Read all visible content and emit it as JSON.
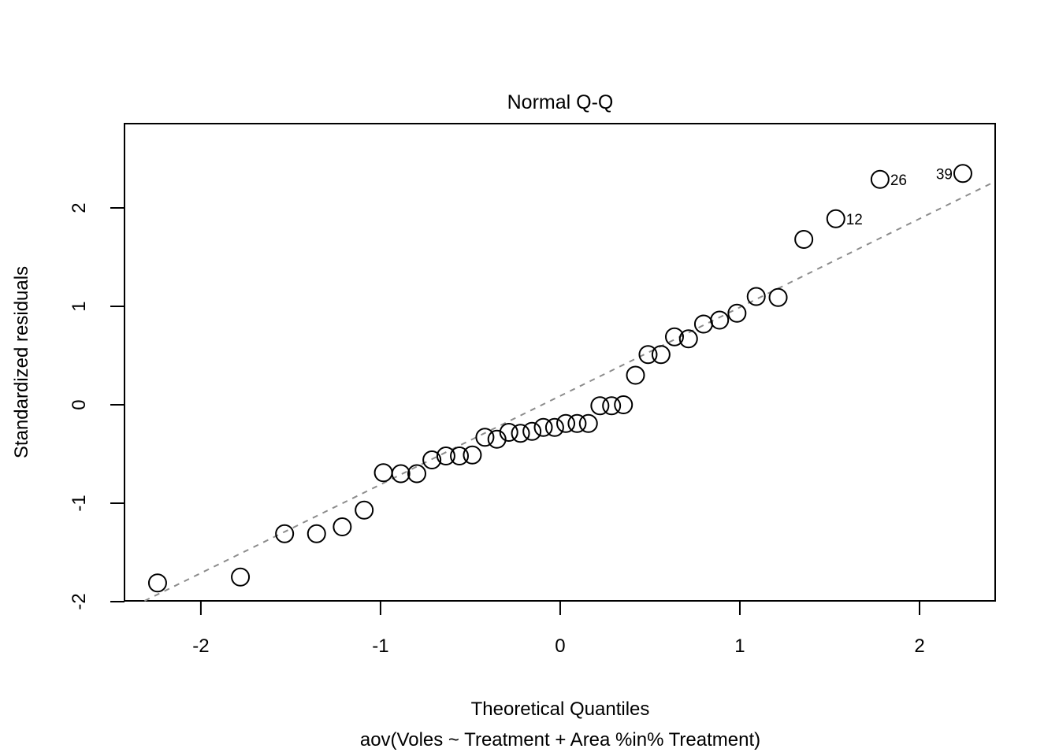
{
  "chart_data": {
    "type": "scatter",
    "title": "Normal Q-Q",
    "xlabel": "Theoretical Quantiles",
    "subtitle": "aov(Voles ~ Treatment + Area %in% Treatment)",
    "ylabel": "Standardized residuals",
    "xlim": [
      -2.425,
      2.421
    ],
    "ylim": [
      -1.992,
      2.856
    ],
    "x_ticks": [
      -2,
      -1,
      0,
      1,
      2
    ],
    "y_ticks": [
      -2,
      -1,
      0,
      1,
      2
    ],
    "grid": false,
    "legend": "none",
    "point_style": "open-circle",
    "points": [
      [
        -2.241,
        -1.81
      ],
      [
        -1.78,
        -1.75
      ],
      [
        -1.534,
        -1.31
      ],
      [
        -1.356,
        -1.31
      ],
      [
        -1.213,
        -1.24
      ],
      [
        -1.091,
        -1.07
      ],
      [
        -0.984,
        -0.69
      ],
      [
        -0.887,
        -0.7
      ],
      [
        -0.798,
        -0.7
      ],
      [
        -0.714,
        -0.56
      ],
      [
        -0.636,
        -0.52
      ],
      [
        -0.561,
        -0.52
      ],
      [
        -0.489,
        -0.51
      ],
      [
        -0.419,
        -0.33
      ],
      [
        -0.352,
        -0.35
      ],
      [
        -0.286,
        -0.28
      ],
      [
        -0.221,
        -0.29
      ],
      [
        -0.157,
        -0.27
      ],
      [
        -0.094,
        -0.23
      ],
      [
        -0.031,
        -0.23
      ],
      [
        0.031,
        -0.19
      ],
      [
        0.094,
        -0.19
      ],
      [
        0.157,
        -0.19
      ],
      [
        0.221,
        -0.01
      ],
      [
        0.286,
        -0.01
      ],
      [
        0.352,
        0.0
      ],
      [
        0.419,
        0.3
      ],
      [
        0.489,
        0.51
      ],
      [
        0.561,
        0.51
      ],
      [
        0.636,
        0.69
      ],
      [
        0.714,
        0.67
      ],
      [
        0.798,
        0.82
      ],
      [
        0.887,
        0.86
      ],
      [
        0.984,
        0.93
      ],
      [
        1.091,
        1.1
      ],
      [
        1.213,
        1.09
      ],
      [
        1.356,
        1.68
      ],
      [
        1.534,
        1.89
      ],
      [
        1.78,
        2.29
      ],
      [
        2.241,
        2.35
      ]
    ],
    "labeled_points": [
      {
        "label": "12",
        "x": 1.534,
        "y": 1.89,
        "side": "right"
      },
      {
        "label": "26",
        "x": 1.78,
        "y": 2.29,
        "side": "right"
      },
      {
        "label": "39",
        "x": 2.241,
        "y": 2.35,
        "side": "left"
      }
    ],
    "reference_line": {
      "style": "dotted",
      "slope": 0.9,
      "intercept": 0.09,
      "color": "#8c8c8c"
    },
    "colors": {
      "points": "#000000",
      "axes": "#000000",
      "text": "#000000"
    }
  }
}
